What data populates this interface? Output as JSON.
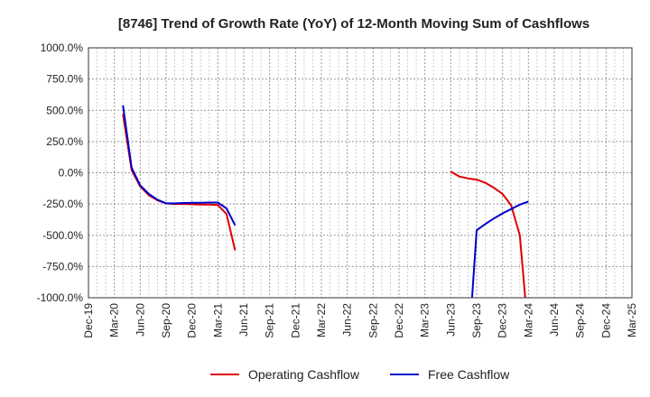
{
  "chart_data": {
    "type": "line",
    "title": "[8746]  Trend of Growth Rate (YoY) of 12-Month Moving Sum of Cashflows",
    "xlabel": "",
    "ylabel": "",
    "ylim": [
      -1000,
      1000
    ],
    "yticks": [
      1000,
      750,
      500,
      250,
      0,
      -250,
      -500,
      -750,
      -1000
    ],
    "ytick_labels": [
      "1000.0%",
      "750.0%",
      "500.0%",
      "250.0%",
      "0.0%",
      "-250.0%",
      "-500.0%",
      "-750.0%",
      "-1000.0%"
    ],
    "x_range": [
      "2019-12",
      "2025-03"
    ],
    "xtick_labels": [
      "Dec-19",
      "Mar-20",
      "Jun-20",
      "Sep-20",
      "Dec-20",
      "Mar-21",
      "Jun-21",
      "Sep-21",
      "Dec-21",
      "Mar-22",
      "Jun-22",
      "Sep-22",
      "Dec-22",
      "Mar-23",
      "Jun-23",
      "Sep-23",
      "Dec-23",
      "Mar-24",
      "Jun-24",
      "Sep-24",
      "Dec-24",
      "Mar-25"
    ],
    "grid": true,
    "legend": "bottom",
    "series": [
      {
        "name": "Operating Cashflow",
        "color": "#dd0000",
        "points": [
          [
            "2020-04",
            470
          ],
          [
            "2020-05",
            20
          ],
          [
            "2020-06",
            -110
          ],
          [
            "2020-07",
            -180
          ],
          [
            "2020-08",
            -220
          ],
          [
            "2020-09",
            -245
          ],
          [
            "2020-10",
            -250
          ],
          [
            "2020-11",
            -250
          ],
          [
            "2020-12",
            -252
          ],
          [
            "2021-01",
            -255
          ],
          [
            "2021-02",
            -255
          ],
          [
            "2021-03",
            -258
          ],
          [
            "2021-04",
            -330
          ],
          [
            "2021-05",
            -620
          ]
        ]
      },
      {
        "name": "Operating Cashflow",
        "color": "#dd0000",
        "points": [
          [
            "2023-06",
            10
          ],
          [
            "2023-07",
            -30
          ],
          [
            "2023-08",
            -45
          ],
          [
            "2023-09",
            -55
          ],
          [
            "2023-10",
            -80
          ],
          [
            "2023-11",
            -120
          ],
          [
            "2023-12",
            -170
          ],
          [
            "2024-01",
            -260
          ],
          [
            "2024-02",
            -500
          ],
          [
            "2024-02-20",
            -1000
          ]
        ]
      },
      {
        "name": "Free Cashflow",
        "color": "#0000cc",
        "points": [
          [
            "2020-04",
            540
          ],
          [
            "2020-05",
            40
          ],
          [
            "2020-06",
            -100
          ],
          [
            "2020-07",
            -170
          ],
          [
            "2020-08",
            -215
          ],
          [
            "2020-09",
            -245
          ],
          [
            "2020-10",
            -245
          ],
          [
            "2020-11",
            -242
          ],
          [
            "2020-12",
            -240
          ],
          [
            "2021-01",
            -240
          ],
          [
            "2021-02",
            -238
          ],
          [
            "2021-03",
            -238
          ],
          [
            "2021-04",
            -285
          ],
          [
            "2021-05",
            -420
          ]
        ]
      },
      {
        "name": "Free Cashflow",
        "color": "#0000cc",
        "points": [
          [
            "2023-08-15",
            -1000
          ],
          [
            "2023-09",
            -460
          ],
          [
            "2023-10",
            -410
          ],
          [
            "2023-11",
            -365
          ],
          [
            "2023-12",
            -325
          ],
          [
            "2024-01",
            -290
          ],
          [
            "2024-02",
            -255
          ],
          [
            "2024-03",
            -230
          ]
        ]
      }
    ],
    "legend_entries": [
      {
        "name": "Operating Cashflow",
        "color": "#dd0000"
      },
      {
        "name": "Free Cashflow",
        "color": "#0000cc"
      }
    ]
  }
}
